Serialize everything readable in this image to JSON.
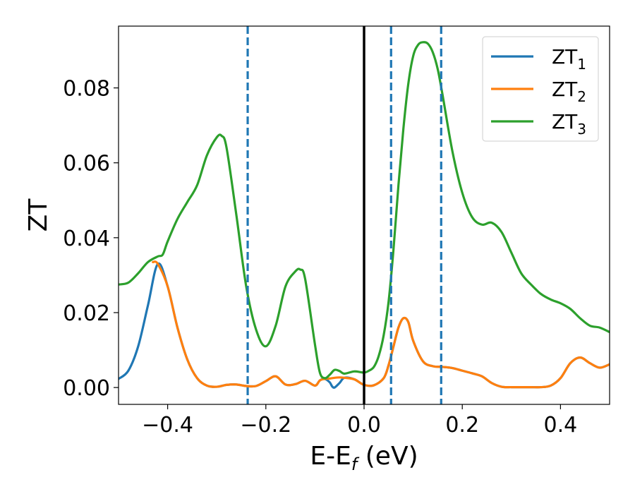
{
  "chart_data": {
    "type": "line",
    "xlabel": {
      "main": "E-E",
      "sub": "f",
      "unit": " (eV)"
    },
    "ylabel": "ZT",
    "xlim": [
      -0.5,
      0.5
    ],
    "ylim": [
      -0.0045,
      0.0965
    ],
    "xticks": [
      -0.4,
      -0.2,
      0.0,
      0.2,
      0.4
    ],
    "xtick_labels": [
      "−0.4",
      "−0.2",
      "0.0",
      "0.2",
      "0.4"
    ],
    "yticks": [
      0.0,
      0.02,
      0.04,
      0.06,
      0.08
    ],
    "ytick_labels": [
      "0.00",
      "0.02",
      "0.04",
      "0.06",
      "0.08"
    ],
    "grid": false,
    "legend_position": "top-right",
    "vertical_lines": [
      {
        "x": 0.0,
        "style": "solid",
        "color": "#000000"
      },
      {
        "x": -0.237,
        "style": "dashed",
        "color": "#1f77b4"
      },
      {
        "x": 0.055,
        "style": "dashed",
        "color": "#1f77b4"
      },
      {
        "x": 0.157,
        "style": "dashed",
        "color": "#1f77b4"
      }
    ],
    "series": [
      {
        "name": "ZT",
        "sub": "1",
        "color": "#1f77b4",
        "x": [
          -0.5,
          -0.48,
          -0.46,
          -0.44,
          -0.42,
          -0.4,
          -0.38,
          -0.36,
          -0.34,
          -0.32,
          -0.3,
          -0.28,
          -0.26,
          -0.24,
          -0.22,
          -0.2,
          -0.18,
          -0.16,
          -0.14,
          -0.12,
          -0.1,
          -0.09,
          -0.08,
          -0.07,
          -0.065,
          -0.06,
          -0.05,
          -0.04,
          -0.02,
          0.0,
          0.02,
          0.04,
          0.05,
          0.06,
          0.07,
          0.08,
          0.09,
          0.1,
          0.12,
          0.14,
          0.16,
          0.18,
          0.2,
          0.22,
          0.24,
          0.26,
          0.28,
          0.3,
          0.32,
          0.34,
          0.36,
          0.38,
          0.4,
          0.42,
          0.44,
          0.46,
          0.48,
          0.5
        ],
        "y": [
          0.0023,
          0.0045,
          0.011,
          0.022,
          0.033,
          0.027,
          0.016,
          0.0075,
          0.0025,
          0.0005,
          0.0002,
          0.0007,
          0.0008,
          0.0004,
          0.0004,
          0.0017,
          0.003,
          0.0008,
          0.0009,
          0.0018,
          0.0005,
          0.0019,
          0.0023,
          0.0014,
          0.0003,
          0.0,
          0.0012,
          0.0026,
          0.0022,
          0.0007,
          0.0006,
          0.0025,
          0.006,
          0.011,
          0.016,
          0.0185,
          0.0175,
          0.0125,
          0.007,
          0.0057,
          0.0055,
          0.0052,
          0.0045,
          0.0038,
          0.003,
          0.0012,
          0.0002,
          0.0001,
          0.0001,
          0.0001,
          0.0001,
          0.0005,
          0.0025,
          0.0065,
          0.008,
          0.0065,
          0.0053,
          0.0062
        ]
      },
      {
        "name": "ZT",
        "sub": "2",
        "color": "#ff7f0e",
        "x": [
          -0.43,
          -0.42,
          -0.4,
          -0.38,
          -0.36,
          -0.34,
          -0.32,
          -0.3,
          -0.28,
          -0.26,
          -0.24,
          -0.22,
          -0.2,
          -0.18,
          -0.16,
          -0.14,
          -0.12,
          -0.1,
          -0.09,
          -0.08,
          -0.07,
          -0.06,
          -0.05,
          -0.04,
          -0.02,
          0.0,
          0.02,
          0.04,
          0.05,
          0.06,
          0.07,
          0.08,
          0.09,
          0.1,
          0.12,
          0.14,
          0.16,
          0.18,
          0.2,
          0.22,
          0.24,
          0.26,
          0.28,
          0.3,
          0.32,
          0.34,
          0.36,
          0.38,
          0.4,
          0.42,
          0.44,
          0.46,
          0.48,
          0.5
        ],
        "y": [
          0.0335,
          0.033,
          0.027,
          0.016,
          0.0075,
          0.0025,
          0.0005,
          0.0002,
          0.0007,
          0.0008,
          0.0004,
          0.0004,
          0.0017,
          0.003,
          0.0008,
          0.0009,
          0.0018,
          0.0005,
          0.0019,
          0.0023,
          0.0024,
          0.0026,
          0.0027,
          0.0026,
          0.0022,
          0.0007,
          0.0006,
          0.0025,
          0.006,
          0.011,
          0.016,
          0.0185,
          0.0175,
          0.0125,
          0.007,
          0.0057,
          0.0055,
          0.0052,
          0.0045,
          0.0038,
          0.003,
          0.0012,
          0.0002,
          0.0001,
          0.0001,
          0.0001,
          0.0001,
          0.0005,
          0.0025,
          0.0065,
          0.008,
          0.0065,
          0.0053,
          0.0062
        ]
      },
      {
        "name": "ZT",
        "sub": "3",
        "color": "#2ca02c",
        "x": [
          -0.5,
          -0.48,
          -0.46,
          -0.44,
          -0.42,
          -0.41,
          -0.4,
          -0.38,
          -0.36,
          -0.34,
          -0.32,
          -0.3,
          -0.29,
          -0.28,
          -0.26,
          -0.24,
          -0.22,
          -0.2,
          -0.18,
          -0.16,
          -0.14,
          -0.13,
          -0.12,
          -0.1,
          -0.09,
          -0.08,
          -0.07,
          -0.06,
          -0.05,
          -0.04,
          -0.02,
          0.0,
          0.01,
          0.02,
          0.03,
          0.04,
          0.05,
          0.06,
          0.07,
          0.08,
          0.09,
          0.1,
          0.11,
          0.12,
          0.13,
          0.14,
          0.15,
          0.16,
          0.18,
          0.2,
          0.22,
          0.24,
          0.26,
          0.28,
          0.3,
          0.32,
          0.34,
          0.36,
          0.38,
          0.4,
          0.42,
          0.44,
          0.46,
          0.48,
          0.5
        ],
        "y": [
          0.0275,
          0.028,
          0.0305,
          0.0335,
          0.035,
          0.0355,
          0.039,
          0.045,
          0.0495,
          0.054,
          0.062,
          0.0668,
          0.0672,
          0.064,
          0.046,
          0.027,
          0.0155,
          0.011,
          0.0165,
          0.027,
          0.031,
          0.0315,
          0.029,
          0.0115,
          0.004,
          0.0025,
          0.0034,
          0.0047,
          0.0044,
          0.0037,
          0.0043,
          0.004,
          0.0045,
          0.0055,
          0.0085,
          0.014,
          0.023,
          0.037,
          0.054,
          0.069,
          0.081,
          0.0885,
          0.0915,
          0.0922,
          0.0918,
          0.0895,
          0.085,
          0.078,
          0.063,
          0.052,
          0.0455,
          0.0435,
          0.044,
          0.0415,
          0.036,
          0.0305,
          0.0275,
          0.025,
          0.0235,
          0.0225,
          0.021,
          0.0185,
          0.0165,
          0.016,
          0.0148
        ]
      }
    ]
  }
}
